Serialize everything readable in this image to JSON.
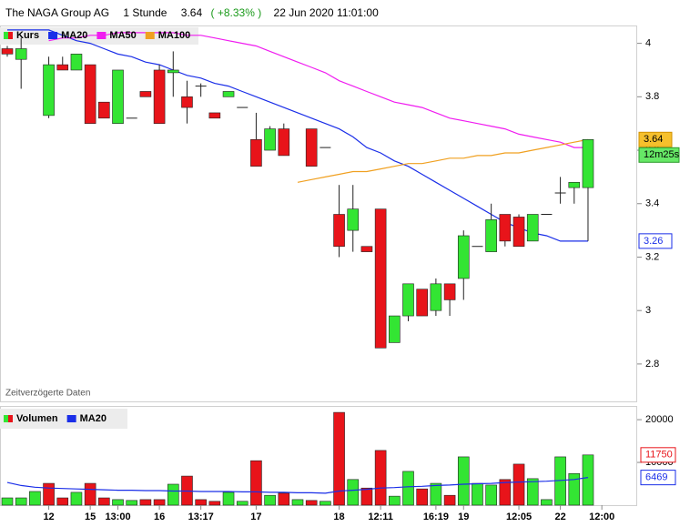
{
  "header": {
    "title": "The NAGA Group AG",
    "interval": "1 Stunde",
    "change": "( +8.33% )",
    "datetime": "22 Jun 2020 11:01:00",
    "countdown": "12m25s"
  },
  "footnote": "Zeitverzögerte Daten",
  "chart_data": [
    {
      "type": "candlestick",
      "legend_label": "Kurs",
      "up_color": "#33e533",
      "down_color": "#e8141a",
      "open": [
        3.98,
        3.94,
        null,
        3.73,
        3.92,
        3.9,
        3.92,
        3.78,
        3.7,
        3.72,
        3.82,
        3.9,
        3.89,
        3.8,
        3.84,
        3.74,
        3.8,
        3.76,
        3.64,
        3.6,
        3.68,
        null,
        3.68,
        3.61,
        3.36,
        3.3,
        3.24,
        3.38,
        2.88,
        2.98,
        3.08,
        3.0,
        3.1,
        3.12,
        3.24,
        3.22,
        3.36,
        3.35,
        3.26,
        3.36,
        3.44,
        3.46,
        3.46,
        null
      ],
      "high": [
        3.99,
        4.02,
        null,
        3.95,
        3.95,
        3.96,
        3.92,
        3.78,
        3.9,
        3.72,
        3.82,
        3.92,
        3.97,
        3.86,
        3.85,
        3.74,
        3.82,
        3.76,
        3.74,
        3.69,
        3.7,
        null,
        3.68,
        3.61,
        3.47,
        3.47,
        3.24,
        3.38,
        2.98,
        3.1,
        3.08,
        3.12,
        3.1,
        3.3,
        3.24,
        3.4,
        3.36,
        3.36,
        3.36,
        3.36,
        3.5,
        3.48,
        3.64,
        null
      ],
      "low": [
        3.95,
        3.83,
        null,
        3.72,
        3.9,
        3.9,
        3.7,
        3.72,
        3.7,
        3.72,
        3.8,
        3.7,
        3.8,
        3.7,
        3.8,
        3.72,
        3.8,
        3.76,
        3.54,
        3.6,
        3.58,
        null,
        3.54,
        3.61,
        3.2,
        3.22,
        3.22,
        2.86,
        2.88,
        2.96,
        2.98,
        2.98,
        2.98,
        3.04,
        3.24,
        3.22,
        3.24,
        3.24,
        3.26,
        3.36,
        3.4,
        3.4,
        3.26,
        null
      ],
      "close": [
        3.96,
        3.98,
        null,
        3.92,
        3.9,
        3.96,
        3.7,
        3.72,
        3.9,
        3.72,
        3.8,
        3.7,
        3.9,
        3.76,
        3.84,
        3.72,
        3.82,
        3.76,
        3.54,
        3.68,
        3.58,
        null,
        3.54,
        3.61,
        3.24,
        3.38,
        3.22,
        2.86,
        2.98,
        3.1,
        2.98,
        3.1,
        3.04,
        3.28,
        3.24,
        3.34,
        3.26,
        3.24,
        3.36,
        3.36,
        3.44,
        3.48,
        3.64,
        null
      ],
      "series": [
        {
          "name": "MA20",
          "color": "#1a2ee8",
          "values": [
            4.05,
            4.05,
            4.05,
            4.05,
            4.03,
            4.01,
            4.0,
            3.98,
            3.96,
            3.95,
            3.93,
            3.92,
            3.9,
            3.88,
            3.87,
            3.85,
            3.84,
            3.82,
            3.8,
            3.78,
            3.76,
            3.74,
            3.72,
            3.7,
            3.68,
            3.65,
            3.61,
            3.59,
            3.56,
            3.54,
            3.51,
            3.48,
            3.45,
            3.42,
            3.39,
            3.36,
            3.33,
            3.31,
            3.29,
            3.28,
            3.26,
            3.26,
            3.26,
            null
          ]
        },
        {
          "name": "MA50",
          "color": "#f01cf0",
          "values": [
            null,
            null,
            null,
            4.01,
            4.02,
            4.02,
            4.03,
            4.03,
            4.04,
            4.04,
            4.04,
            4.04,
            4.04,
            4.03,
            4.03,
            4.02,
            4.01,
            4.0,
            3.99,
            3.97,
            3.95,
            3.93,
            3.91,
            3.89,
            3.86,
            3.84,
            3.82,
            3.8,
            3.78,
            3.77,
            3.76,
            3.74,
            3.72,
            3.71,
            3.7,
            3.69,
            3.68,
            3.66,
            3.65,
            3.64,
            3.63,
            3.61,
            3.61,
            null
          ]
        },
        {
          "name": "MA100",
          "color": "#f0a020",
          "values": [
            null,
            null,
            null,
            null,
            null,
            null,
            null,
            null,
            null,
            null,
            null,
            null,
            null,
            null,
            null,
            null,
            null,
            null,
            null,
            null,
            null,
            3.48,
            3.49,
            3.5,
            3.51,
            3.52,
            3.52,
            3.53,
            3.54,
            3.55,
            3.55,
            3.56,
            3.57,
            3.57,
            3.58,
            3.58,
            3.59,
            3.59,
            3.6,
            3.61,
            3.62,
            3.63,
            3.64,
            null
          ]
        }
      ],
      "ylim": [
        2.66,
        4.06
      ],
      "yticks": [
        2.8,
        3,
        3.2,
        3.4,
        3.6,
        3.8,
        4
      ]
    },
    {
      "type": "bar",
      "name": "Volumen",
      "categories": [
        null,
        null,
        null,
        "12",
        null,
        null,
        "15",
        null,
        "13:00",
        null,
        null,
        "16",
        null,
        null,
        "13:17",
        null,
        null,
        null,
        "17",
        null,
        null,
        null,
        null,
        null,
        "18",
        null,
        null,
        "12:11",
        null,
        null,
        null,
        "16:19",
        null,
        "19",
        null,
        null,
        null,
        "12:05",
        null,
        null,
        "22",
        null,
        null,
        "12:00"
      ],
      "values": [
        1700,
        1700,
        3200,
        5100,
        1700,
        3000,
        5100,
        1700,
        1300,
        1100,
        1300,
        1300,
        4900,
        6800,
        1300,
        900,
        3000,
        900,
        10400,
        2300,
        2800,
        1300,
        1100,
        900,
        21700,
        6000,
        4000,
        12800,
        2100,
        7900,
        3800,
        5100,
        2300,
        11300,
        5100,
        4700,
        6000,
        9600,
        6200,
        1300,
        11300,
        7400,
        11750,
        null
      ],
      "bar_colors": [
        "#33e533",
        "#33e533",
        "#33e533",
        "#e8141a",
        "#e8141a",
        "#33e533",
        "#e8141a",
        "#e8141a",
        "#33e533",
        "#33e533",
        "#e8141a",
        "#e8141a",
        "#33e533",
        "#e8141a",
        "#e8141a",
        "#e8141a",
        "#33e533",
        "#33e533",
        "#e8141a",
        "#33e533",
        "#e8141a",
        "#33e533",
        "#e8141a",
        "#33e533",
        "#e8141a",
        "#33e533",
        "#e8141a",
        "#e8141a",
        "#33e533",
        "#33e533",
        "#e8141a",
        "#33e533",
        "#e8141a",
        "#33e533",
        "#33e533",
        "#33e533",
        "#e8141a",
        "#e8141a",
        "#33e533",
        "#33e533",
        "#33e533",
        "#33e533",
        "#33e533",
        null
      ],
      "series": [
        {
          "name": "MA20",
          "color": "#1a2ee8",
          "values": [
            5300,
            4600,
            4200,
            4000,
            3900,
            3800,
            3700,
            3600,
            3500,
            3500,
            3400,
            3400,
            3300,
            3300,
            3200,
            3200,
            3200,
            3100,
            3100,
            3000,
            3000,
            2900,
            2900,
            2800,
            3300,
            3500,
            3700,
            4000,
            4100,
            4300,
            4400,
            4600,
            4700,
            4900,
            5000,
            5100,
            5300,
            5400,
            5500,
            5600,
            5800,
            6000,
            6469,
            null
          ]
        }
      ],
      "ylim": [
        0,
        23000
      ],
      "yticks": [
        10000,
        20000
      ]
    }
  ]
}
